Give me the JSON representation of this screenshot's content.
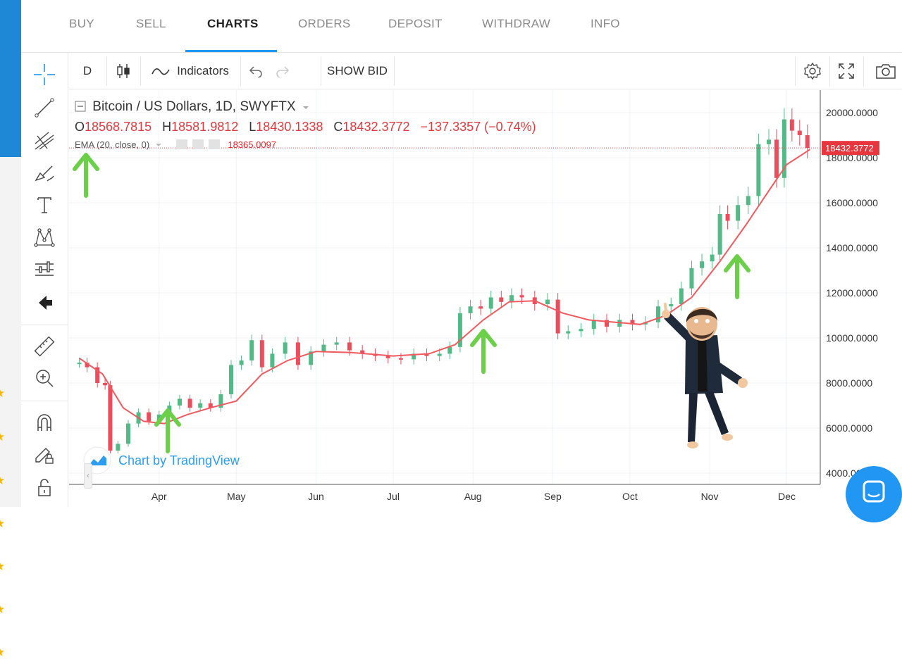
{
  "nav": {
    "items": [
      "BUY",
      "SELL",
      "CHARTS",
      "ORDERS",
      "DEPOSIT",
      "WITHDRAW",
      "INFO"
    ],
    "active": "CHARTS"
  },
  "toolbar": {
    "interval": "D",
    "indicators_label": "Indicators",
    "show_bid_label": "SHOW BID"
  },
  "colors": {
    "accent": "#2196f3",
    "up_candle": "#53b987",
    "down_candle": "#eb4d5c",
    "ema_line": "#f05a5f",
    "price_tag": "#e8363f",
    "arrow": "#6ccf4a"
  },
  "legend": {
    "title": "Bitcoin / US Dollars, 1D, SWYFTX",
    "open_key": "O",
    "open_value": "18568.7815",
    "high_key": "H",
    "high_value": "18581.9812",
    "low_key": "L",
    "low_value": "18430.1338",
    "close_key": "C",
    "close_value": "18432.3772",
    "change": "−137.3357 (−0.74%)",
    "ema_label": "EMA (20, close, 0)",
    "ema_value": "18365.0097"
  },
  "watermark": "Chart by TradingView",
  "chart_data": {
    "type": "line",
    "title": "Bitcoin / US Dollars, 1D, SWYFTX",
    "xlabel": "",
    "ylabel": "",
    "x_ticks": [
      "Apr",
      "May",
      "Jun",
      "Jul",
      "Aug",
      "Sep",
      "Oct",
      "Nov",
      "Dec"
    ],
    "y_ticks": [
      "20000.0000",
      "18000.0000",
      "16000.0000",
      "14000.0000",
      "12000.0000",
      "10000.0000",
      "8000.0000",
      "6000.0000",
      "4000.0000"
    ],
    "ylim": [
      3500,
      21000
    ],
    "last_price_label": "18432.3772",
    "last_price": 18432.3772,
    "grid": true,
    "series": [
      {
        "style": "candlestick",
        "x": [
          "2020-03-01",
          "2020-03-04",
          "2020-03-08",
          "2020-03-11",
          "2020-03-13",
          "2020-03-16",
          "2020-03-20",
          "2020-03-24",
          "2020-03-28",
          "2020-04-01",
          "2020-04-05",
          "2020-04-09",
          "2020-04-13",
          "2020-04-17",
          "2020-04-21",
          "2020-04-25",
          "2020-04-29",
          "2020-05-03",
          "2020-05-07",
          "2020-05-11",
          "2020-05-15",
          "2020-05-20",
          "2020-05-25",
          "2020-05-30",
          "2020-06-04",
          "2020-06-09",
          "2020-06-14",
          "2020-06-19",
          "2020-06-24",
          "2020-06-29",
          "2020-07-04",
          "2020-07-09",
          "2020-07-14",
          "2020-07-19",
          "2020-07-23",
          "2020-07-27",
          "2020-07-31",
          "2020-08-04",
          "2020-08-08",
          "2020-08-12",
          "2020-08-16",
          "2020-08-20",
          "2020-08-25",
          "2020-08-30",
          "2020-09-03",
          "2020-09-07",
          "2020-09-12",
          "2020-09-17",
          "2020-09-22",
          "2020-09-27",
          "2020-10-02",
          "2020-10-07",
          "2020-10-12",
          "2020-10-17",
          "2020-10-21",
          "2020-10-25",
          "2020-10-29",
          "2020-11-02",
          "2020-11-05",
          "2020-11-08",
          "2020-11-12",
          "2020-11-16",
          "2020-11-20",
          "2020-11-24",
          "2020-11-27",
          "2020-11-30",
          "2020-12-03",
          "2020-12-06",
          "2020-12-09"
        ],
        "values": [
          8900,
          8700,
          8000,
          7900,
          5000,
          5300,
          6200,
          6700,
          6300,
          6600,
          7000,
          7300,
          6900,
          7100,
          6900,
          7500,
          8800,
          9000,
          9900,
          8700,
          9300,
          9800,
          8800,
          9400,
          9700,
          9800,
          9450,
          9300,
          9200,
          9100,
          9050,
          9300,
          9200,
          9300,
          9600,
          11100,
          11400,
          11300,
          11800,
          11600,
          11900,
          11800,
          11500,
          11700,
          10200,
          10300,
          10400,
          10800,
          10500,
          10800,
          10600,
          10700,
          11400,
          11500,
          12200,
          13100,
          13400,
          13700,
          15500,
          15200,
          15900,
          16300,
          18600,
          18800,
          17100,
          19700,
          19200,
          19000,
          18432.3772
        ]
      },
      {
        "name": "EMA (20, close, 0)",
        "style": "line",
        "x": [
          "2020-03-01",
          "2020-03-10",
          "2020-03-18",
          "2020-03-26",
          "2020-04-03",
          "2020-04-12",
          "2020-04-21",
          "2020-05-01",
          "2020-05-11",
          "2020-05-21",
          "2020-06-01",
          "2020-06-15",
          "2020-07-01",
          "2020-07-15",
          "2020-07-25",
          "2020-08-05",
          "2020-08-15",
          "2020-08-25",
          "2020-09-05",
          "2020-09-15",
          "2020-09-25",
          "2020-10-05",
          "2020-10-15",
          "2020-10-25",
          "2020-11-05",
          "2020-11-15",
          "2020-11-25",
          "2020-12-01",
          "2020-12-10"
        ],
        "values": [
          9100,
          8400,
          6900,
          6300,
          6200,
          6600,
          6900,
          7200,
          8400,
          9000,
          9400,
          9350,
          9200,
          9300,
          9700,
          10800,
          11600,
          11650,
          11100,
          10800,
          10700,
          10600,
          11000,
          11800,
          13400,
          15000,
          16700,
          17700,
          18365.0097
        ]
      }
    ]
  }
}
